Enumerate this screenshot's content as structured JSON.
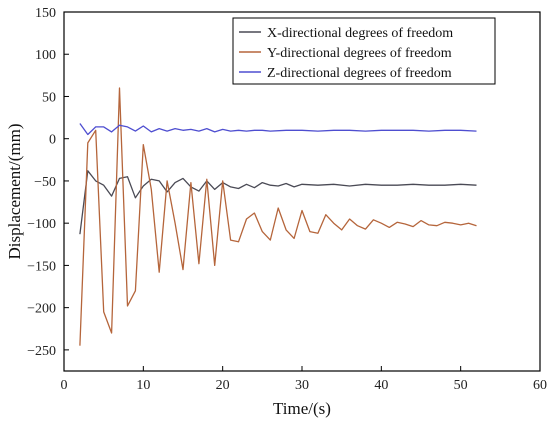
{
  "chart_data": {
    "type": "line",
    "xlabel": "Time/(s)",
    "ylabel": "Displacement/(mm)",
    "xlim": [
      0,
      60
    ],
    "ylim": [
      -275,
      150
    ],
    "xticks": [
      0,
      10,
      20,
      30,
      40,
      50,
      60
    ],
    "yticks": [
      150,
      100,
      50,
      0,
      -50,
      -100,
      -150,
      -200,
      -250
    ],
    "grid": false,
    "legend_position": "top-right",
    "series": [
      {
        "name": "X-directional degrees of freedom",
        "color": "#4a4a55",
        "x": [
          2,
          3,
          4,
          5,
          6,
          7,
          8,
          9,
          10,
          11,
          12,
          13,
          14,
          15,
          16,
          17,
          18,
          19,
          20,
          21,
          22,
          23,
          24,
          25,
          26,
          27,
          28,
          29,
          30,
          32,
          34,
          36,
          38,
          40,
          42,
          44,
          46,
          48,
          50,
          52
        ],
        "y": [
          -113,
          -38,
          -50,
          -55,
          -68,
          -47,
          -45,
          -70,
          -56,
          -48,
          -50,
          -63,
          -52,
          -47,
          -57,
          -62,
          -50,
          -60,
          -52,
          -57,
          -59,
          -54,
          -58,
          -52,
          -55,
          -56,
          -53,
          -57,
          -54,
          -55,
          -54,
          -56,
          -54,
          -55,
          -55,
          -54,
          -55,
          -55,
          -54,
          -55
        ]
      },
      {
        "name": "Y-directional degrees of freedom",
        "color": "#b5653b",
        "x": [
          2,
          3,
          4,
          5,
          6,
          7,
          8,
          9,
          10,
          11,
          12,
          13,
          14,
          15,
          16,
          17,
          18,
          19,
          20,
          21,
          22,
          23,
          24,
          25,
          26,
          27,
          28,
          29,
          30,
          31,
          32,
          33,
          34,
          35,
          36,
          37,
          38,
          39,
          40,
          41,
          42,
          43,
          44,
          45,
          46,
          47,
          48,
          49,
          50,
          51,
          52
        ],
        "y": [
          -245,
          -5,
          10,
          -205,
          -230,
          60,
          -198,
          -180,
          -7,
          -60,
          -158,
          -50,
          -100,
          -155,
          -52,
          -148,
          -48,
          -150,
          -50,
          -120,
          -122,
          -95,
          -88,
          -110,
          -120,
          -82,
          -108,
          -118,
          -85,
          -110,
          -112,
          -90,
          -100,
          -108,
          -95,
          -103,
          -107,
          -96,
          -100,
          -105,
          -99,
          -101,
          -104,
          -97,
          -102,
          -103,
          -99,
          -100,
          -102,
          -100,
          -103
        ]
      },
      {
        "name": "Z-directional degrees of freedom",
        "color": "#4e4ed0",
        "x": [
          2,
          3,
          4,
          5,
          6,
          7,
          8,
          9,
          10,
          11,
          12,
          13,
          14,
          15,
          16,
          17,
          18,
          19,
          20,
          21,
          22,
          23,
          24,
          25,
          26,
          28,
          30,
          32,
          34,
          36,
          38,
          40,
          42,
          44,
          46,
          48,
          50,
          52
        ],
        "y": [
          18,
          5,
          14,
          14,
          8,
          16,
          14,
          9,
          15,
          8,
          12,
          9,
          12,
          10,
          11,
          9,
          12,
          8,
          11,
          9,
          10,
          9,
          10,
          10,
          9,
          10,
          10,
          9,
          10,
          10,
          9,
          10,
          10,
          10,
          9,
          10,
          10,
          9
        ]
      }
    ]
  }
}
